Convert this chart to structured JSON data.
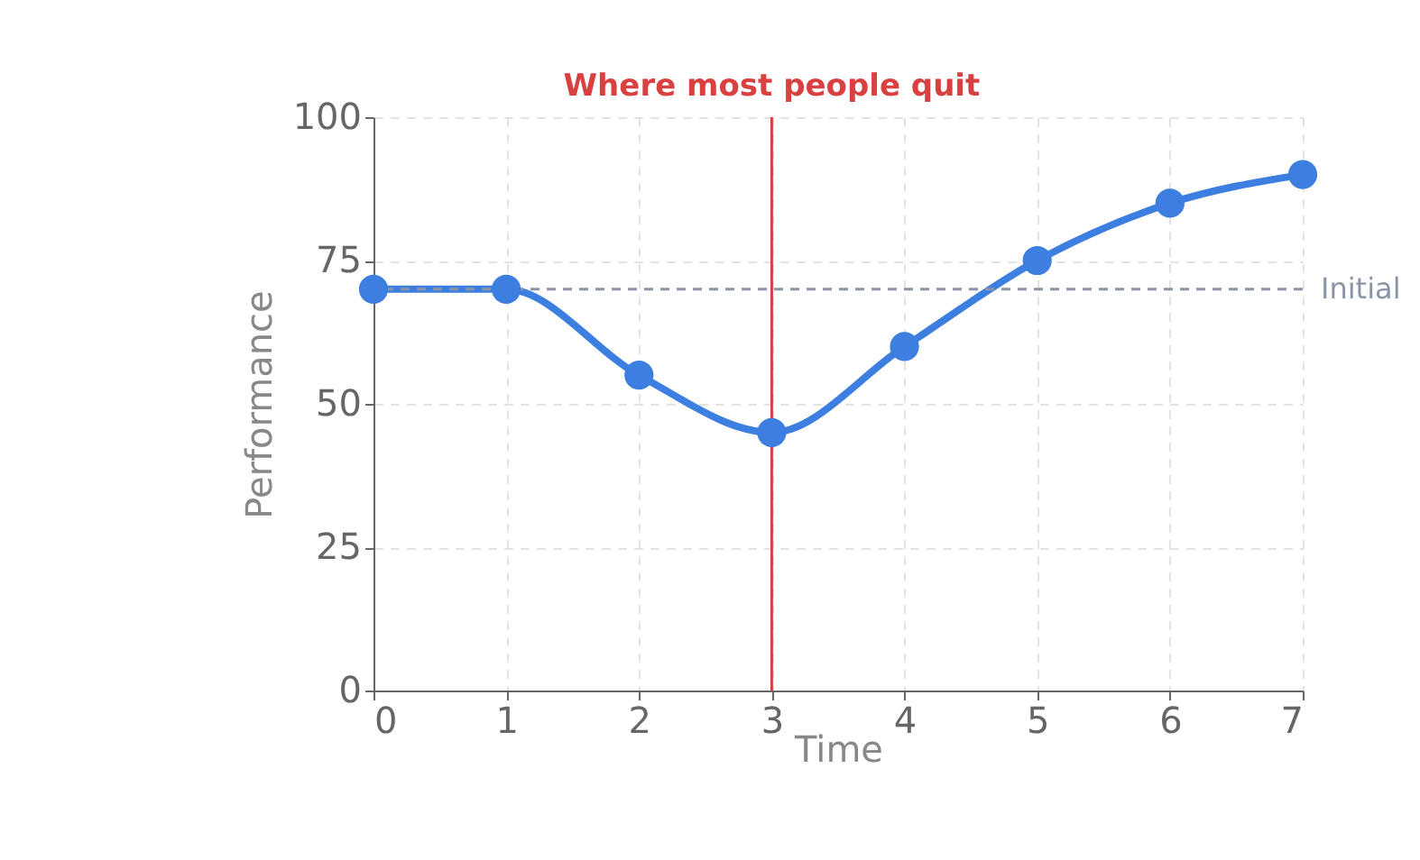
{
  "chart_data": {
    "type": "line",
    "xlabel": "Time",
    "ylabel": "Performance",
    "x": [
      0,
      1,
      2,
      3,
      4,
      5,
      6,
      7
    ],
    "series": [
      {
        "color": "#3d7fe0",
        "values": [
          70,
          70,
          55,
          45,
          60,
          75,
          85,
          90
        ]
      }
    ],
    "xlim": [
      0,
      7
    ],
    "xticks": [
      0,
      1,
      2,
      3,
      4,
      5,
      6,
      7
    ],
    "ylim": [
      0,
      100
    ],
    "yticks": [
      0,
      25,
      50,
      75,
      100
    ],
    "grid": true,
    "marker": "circle",
    "line_style": "solid",
    "ref_lines": [
      {
        "axis": "x",
        "value": 3,
        "label": "Where most people quit",
        "color": "#d94040",
        "line_style": "solid"
      },
      {
        "axis": "y",
        "value": 70,
        "label": "Initial",
        "color": "#8a94a6",
        "line_style": "dashed"
      }
    ]
  }
}
